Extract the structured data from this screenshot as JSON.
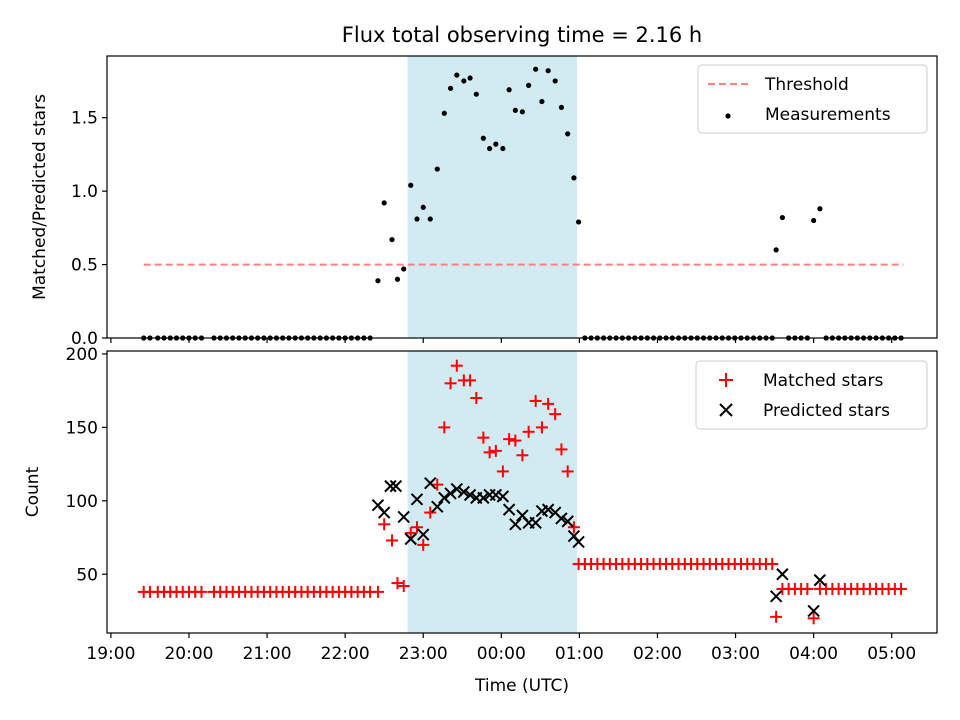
{
  "title": "Flux total observing time = 2.16 h",
  "chart_data": [
    {
      "type": "scatter",
      "ylabel": "Matched/Predicted stars",
      "xlabel": "",
      "ylim": [
        0,
        1.92
      ],
      "yticks": [
        "0.0",
        "0.5",
        "1.0",
        "1.5"
      ],
      "ytick_values": [
        0,
        0.5,
        1.0,
        1.5
      ],
      "legend_position": "top-right",
      "highlight_span": {
        "start_h": 22.8,
        "end_h": 24.97,
        "color": "#add8e6"
      },
      "threshold": {
        "name": "Threshold",
        "value": 0.5,
        "x_start_h": 19.42,
        "x_end_h": 29.15,
        "color": "#ff8080"
      },
      "series": [
        {
          "name": "Measurements",
          "color": "#000000",
          "marker": "dot",
          "x_h": [
            19.42,
            19.5,
            19.6,
            19.68,
            19.76,
            19.84,
            19.92,
            20.0,
            20.08,
            20.16,
            20.32,
            20.4,
            20.48,
            20.56,
            20.64,
            20.72,
            20.8,
            20.88,
            20.96,
            21.04,
            21.12,
            21.2,
            21.28,
            21.36,
            21.44,
            21.52,
            21.6,
            21.68,
            21.76,
            21.84,
            21.92,
            22.0,
            22.08,
            22.16,
            22.24,
            22.32,
            22.42,
            22.5,
            22.6,
            22.67,
            22.75,
            22.84,
            22.92,
            23.0,
            23.09,
            23.18,
            23.27,
            23.35,
            23.43,
            23.52,
            23.6,
            23.68,
            23.77,
            23.85,
            23.93,
            24.02,
            24.1,
            24.18,
            24.27,
            24.35,
            24.44,
            24.52,
            24.6,
            24.69,
            24.77,
            24.85,
            24.93,
            24.99,
            25.07,
            25.15,
            25.23,
            25.31,
            25.39,
            25.47,
            25.55,
            25.63,
            25.71,
            25.79,
            25.87,
            25.95,
            26.03,
            26.11,
            26.19,
            26.27,
            26.35,
            26.43,
            26.51,
            26.59,
            26.67,
            26.75,
            26.83,
            26.91,
            26.99,
            27.07,
            27.15,
            27.23,
            27.31,
            27.39,
            27.47,
            27.52,
            27.6,
            27.68,
            27.76,
            27.84,
            27.92,
            28.0,
            28.08,
            28.16,
            28.24,
            28.32,
            28.4,
            28.48,
            28.56,
            28.64,
            28.72,
            28.8,
            28.88,
            28.96,
            29.04,
            29.12
          ],
          "y": [
            0,
            0,
            0,
            0,
            0,
            0,
            0,
            0,
            0,
            0,
            0,
            0,
            0,
            0,
            0,
            0,
            0,
            0,
            0,
            0,
            0,
            0,
            0,
            0,
            0,
            0,
            0,
            0,
            0,
            0,
            0,
            0,
            0,
            0,
            0,
            0,
            0.39,
            0.92,
            0.67,
            0.4,
            0.47,
            1.04,
            0.81,
            0.89,
            0.81,
            1.15,
            1.53,
            1.7,
            1.79,
            1.75,
            1.77,
            1.66,
            1.36,
            1.29,
            1.32,
            1.29,
            1.69,
            1.55,
            1.54,
            1.72,
            1.83,
            1.61,
            1.82,
            1.75,
            1.57,
            1.39,
            1.09,
            0.79,
            0,
            0,
            0,
            0,
            0,
            0,
            0,
            0,
            0,
            0,
            0,
            0,
            0,
            0,
            0,
            0,
            0,
            0,
            0,
            0,
            0,
            0,
            0,
            0,
            0,
            0,
            0,
            0,
            0,
            0,
            0,
            0.6,
            0.82,
            0,
            0,
            0,
            0,
            0.8,
            0.88,
            0,
            0,
            0,
            0,
            0,
            0,
            0,
            0,
            0,
            0,
            0,
            0,
            0
          ]
        }
      ]
    },
    {
      "type": "scatter",
      "ylabel": "Count",
      "xlabel": "Time (UTC)",
      "ylim": [
        10,
        202
      ],
      "yticks": [
        "50",
        "100",
        "150",
        "200"
      ],
      "ytick_values": [
        50,
        100,
        150,
        200
      ],
      "xlim_h": [
        18.95,
        29.58
      ],
      "xticks": [
        "19:00",
        "20:00",
        "21:00",
        "22:00",
        "23:00",
        "00:00",
        "01:00",
        "02:00",
        "03:00",
        "04:00",
        "05:00"
      ],
      "xtick_values_h": [
        19,
        20,
        21,
        22,
        23,
        24,
        25,
        26,
        27,
        28,
        29
      ],
      "legend_position": "top-right",
      "highlight_span": {
        "start_h": 22.8,
        "end_h": 24.97,
        "color": "#add8e6"
      },
      "series": [
        {
          "name": "Matched stars",
          "color": "#ff0000",
          "marker": "plus",
          "x_h": [
            19.42,
            19.5,
            19.6,
            19.68,
            19.76,
            19.84,
            19.92,
            20.0,
            20.08,
            20.16,
            20.32,
            20.4,
            20.48,
            20.56,
            20.64,
            20.72,
            20.8,
            20.88,
            20.96,
            21.04,
            21.12,
            21.2,
            21.28,
            21.36,
            21.44,
            21.52,
            21.6,
            21.68,
            21.76,
            21.84,
            21.92,
            22.0,
            22.08,
            22.16,
            22.24,
            22.32,
            22.42,
            22.5,
            22.6,
            22.67,
            22.75,
            22.84,
            22.92,
            23.0,
            23.09,
            23.18,
            23.27,
            23.35,
            23.43,
            23.52,
            23.6,
            23.68,
            23.77,
            23.85,
            23.93,
            24.02,
            24.1,
            24.18,
            24.27,
            24.35,
            24.44,
            24.52,
            24.6,
            24.69,
            24.77,
            24.85,
            24.93,
            24.99,
            25.07,
            25.15,
            25.23,
            25.31,
            25.39,
            25.47,
            25.55,
            25.63,
            25.71,
            25.79,
            25.87,
            25.95,
            26.03,
            26.11,
            26.19,
            26.27,
            26.35,
            26.43,
            26.51,
            26.59,
            26.67,
            26.75,
            26.83,
            26.91,
            26.99,
            27.07,
            27.15,
            27.23,
            27.31,
            27.39,
            27.47,
            27.52,
            27.6,
            27.68,
            27.76,
            27.84,
            27.92,
            28.0,
            28.08,
            28.16,
            28.24,
            28.32,
            28.4,
            28.48,
            28.56,
            28.64,
            28.72,
            28.8,
            28.88,
            28.96,
            29.04,
            29.12
          ],
          "y": [
            38,
            38,
            38,
            38,
            38,
            38,
            38,
            38,
            38,
            38,
            38,
            38,
            38,
            38,
            38,
            38,
            38,
            38,
            38,
            38,
            38,
            38,
            38,
            38,
            38,
            38,
            38,
            38,
            38,
            38,
            38,
            38,
            38,
            38,
            38,
            38,
            38,
            84,
            73,
            44,
            42,
            78,
            82,
            70,
            92,
            111,
            150,
            180,
            192,
            182,
            182,
            170,
            143,
            133,
            134,
            120,
            142,
            141,
            131,
            147,
            168,
            150,
            166,
            159,
            135,
            120,
            82,
            57,
            57,
            57,
            57,
            57,
            57,
            57,
            57,
            57,
            57,
            57,
            57,
            57,
            57,
            57,
            57,
            57,
            57,
            57,
            57,
            57,
            57,
            57,
            57,
            57,
            57,
            57,
            57,
            57,
            57,
            57,
            57,
            21,
            40,
            40,
            40,
            40,
            40,
            20,
            40,
            40,
            40,
            40,
            40,
            40,
            40,
            40,
            40,
            40,
            40,
            40,
            40,
            40
          ]
        },
        {
          "name": "Predicted stars",
          "color": "#000000",
          "marker": "x",
          "x_h": [
            22.42,
            22.5,
            22.58,
            22.65,
            22.75,
            22.84,
            22.92,
            23.0,
            23.09,
            23.18,
            23.27,
            23.35,
            23.43,
            23.52,
            23.6,
            23.68,
            23.77,
            23.85,
            23.93,
            24.02,
            24.1,
            24.18,
            24.27,
            24.35,
            24.44,
            24.52,
            24.6,
            24.69,
            24.77,
            24.85,
            24.93,
            24.99,
            27.52,
            27.6,
            28.0,
            28.08
          ],
          "y": [
            97,
            92,
            110,
            110,
            89,
            74,
            101,
            77,
            112,
            96,
            102,
            105,
            108,
            106,
            104,
            102,
            102,
            104,
            104,
            103,
            94,
            84,
            90,
            85,
            85,
            93,
            94,
            92,
            88,
            86,
            76,
            72,
            35,
            50,
            25,
            46
          ]
        }
      ]
    }
  ]
}
